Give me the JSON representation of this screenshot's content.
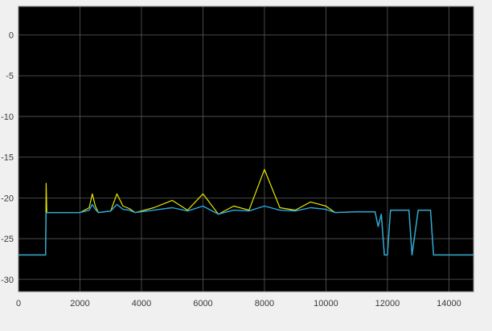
{
  "chart_data": {
    "type": "line",
    "title": "",
    "xlabel": "",
    "ylabel": "",
    "xlim": [
      0,
      14800
    ],
    "ylim": [
      -31.5,
      3.5
    ],
    "grid": true,
    "x_ticks": [
      0,
      2000,
      4000,
      6000,
      8000,
      10000,
      12000,
      14000
    ],
    "y_ticks": [
      0,
      -5,
      -10,
      -15,
      -20,
      -25,
      -30
    ],
    "x_tick_labels": [
      "0",
      "2000",
      "4000",
      "6000",
      "8000",
      "10000",
      "12000",
      "14000"
    ],
    "y_tick_labels": [
      "0",
      "-5",
      "-10",
      "-15",
      "-20",
      "-25",
      "-30"
    ],
    "series": [
      {
        "color": "#e6e600",
        "x": [
          0,
          880,
          900,
          920,
          960,
          1100,
          2000,
          2300,
          2400,
          2500,
          2600,
          3000,
          3200,
          3400,
          3600,
          3800,
          4000,
          4400,
          5000,
          5500,
          6000,
          6500,
          7000,
          7500,
          8000,
          8500,
          9000,
          9500,
          10000,
          10300,
          11000,
          11400,
          11600,
          11700,
          11800,
          11900,
          12000,
          12100,
          12200,
          12300,
          12700,
          12800,
          13000,
          13400,
          13500,
          14800
        ],
        "y": [
          -27,
          -27,
          -18.2,
          -21.8,
          -21.8,
          -21.8,
          -21.8,
          -21.2,
          -19.5,
          -21.0,
          -21.8,
          -21.6,
          -19.5,
          -21.0,
          -21.3,
          -21.8,
          -21.6,
          -21.2,
          -20.3,
          -21.5,
          -19.5,
          -22.0,
          -21.0,
          -21.5,
          -16.5,
          -21.2,
          -21.5,
          -20.5,
          -21.0,
          -21.8,
          -21.7,
          -21.7,
          -21.7,
          -23.5,
          -22.0,
          -27.0,
          -27.0,
          -21.5,
          -21.5,
          -21.5,
          -21.5,
          -27.0,
          -21.5,
          -21.5,
          -27.0,
          -27.0
        ]
      },
      {
        "color": "#29a8e0",
        "x": [
          0,
          880,
          900,
          960,
          1100,
          2000,
          2300,
          2400,
          2500,
          2600,
          3000,
          3200,
          3400,
          3600,
          3800,
          4000,
          4400,
          5000,
          5500,
          6000,
          6500,
          7000,
          7500,
          8000,
          8500,
          9000,
          9500,
          10000,
          10300,
          11000,
          11400,
          11600,
          11700,
          11800,
          11900,
          12000,
          12100,
          12200,
          12300,
          12700,
          12800,
          13000,
          13400,
          13500,
          14800
        ],
        "y": [
          -27,
          -27,
          -21.8,
          -21.8,
          -21.8,
          -21.8,
          -21.5,
          -20.8,
          -21.4,
          -21.8,
          -21.6,
          -20.8,
          -21.4,
          -21.5,
          -21.8,
          -21.7,
          -21.5,
          -21.2,
          -21.6,
          -21.0,
          -22.0,
          -21.5,
          -21.6,
          -21.0,
          -21.5,
          -21.6,
          -21.2,
          -21.4,
          -21.8,
          -21.7,
          -21.7,
          -21.7,
          -23.5,
          -22.0,
          -27.0,
          -27.0,
          -21.5,
          -21.5,
          -21.5,
          -21.5,
          -27.0,
          -21.5,
          -21.5,
          -27.0,
          -27.0
        ]
      }
    ]
  }
}
